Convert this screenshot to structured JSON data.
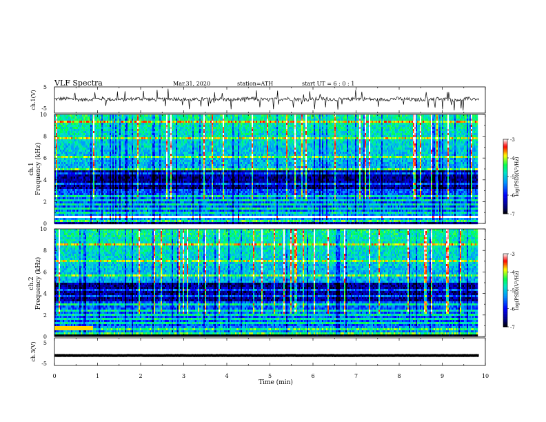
{
  "header": {
    "title": "VLF Spectra",
    "date": "Mar.31, 2020",
    "station": "station=ATH",
    "start_ut": "start UT = 6 : 0 : 1"
  },
  "chart_data": [
    {
      "type": "line",
      "ylabel": "ch.1(V)",
      "ylim": [
        -5,
        5
      ],
      "yticks": [
        "5",
        "-5"
      ],
      "xlim": [
        0,
        10
      ],
      "series": [
        {
          "baseline": 0.3,
          "noise": 0.7,
          "spikes": 40
        }
      ]
    },
    {
      "type": "heatmap",
      "ylabel": [
        "ch.1",
        "Frequency (kHz)"
      ],
      "ylim": [
        0,
        10
      ],
      "yticks": [
        "0",
        "2",
        "4",
        "6",
        "8",
        "10"
      ],
      "xlim": [
        0,
        9.8
      ],
      "colorbar": {
        "label": "log(PSD)(V²/Hz)",
        "ticks": [
          "-3",
          "-4",
          "-5",
          "-6",
          "-7"
        ],
        "range": [
          -7,
          -3
        ]
      }
    },
    {
      "type": "heatmap",
      "ylabel": [
        "ch.2",
        "Frequency (kHz)"
      ],
      "ylim": [
        0,
        10
      ],
      "yticks": [
        "0",
        "2",
        "4",
        "6",
        "8",
        "10"
      ],
      "xlim": [
        0,
        9.8
      ],
      "colorbar": {
        "label": "log(PSD)(V²/Hz)",
        "ticks": [
          "-3",
          "-4",
          "-5",
          "-6",
          "-7"
        ],
        "range": [
          -7,
          -3
        ]
      }
    },
    {
      "type": "line",
      "ylabel": "ch.3(V)",
      "ylim": [
        -5,
        5
      ],
      "yticks": [
        "5",
        "-5"
      ],
      "xlim": [
        0,
        10
      ],
      "series": [
        {
          "baseline": -1.4,
          "noise": 0.05,
          "spikes": 0
        }
      ]
    }
  ],
  "xaxis": {
    "label": "Time (min)",
    "ticks": [
      "0",
      "1",
      "2",
      "3",
      "4",
      "5",
      "6",
      "7",
      "8",
      "9",
      "10"
    ]
  },
  "colors": {
    "colormap": [
      "#000000",
      "#0000ff",
      "#00bfff",
      "#00ff80",
      "#ffff00",
      "#ff0000",
      "#ffffff"
    ]
  }
}
